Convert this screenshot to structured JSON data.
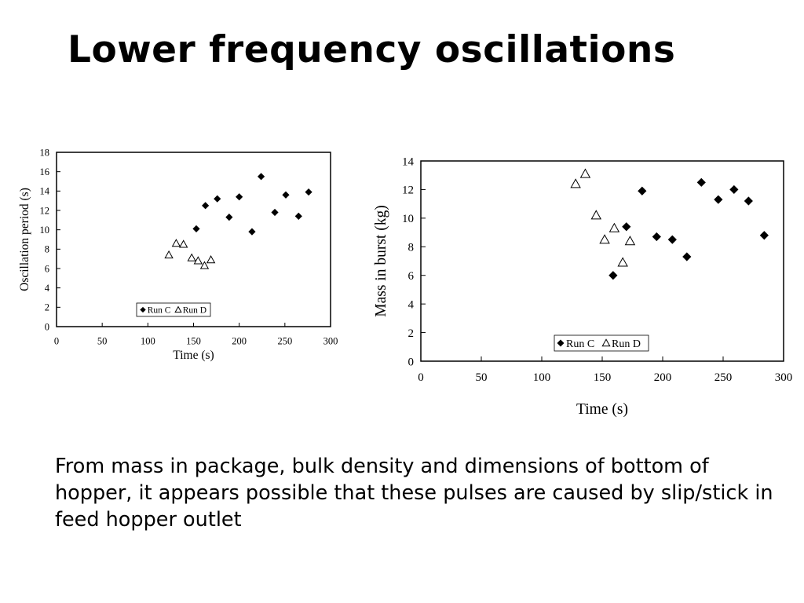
{
  "slide": {
    "title": "Lower frequency oscillations",
    "body": "From mass in package, bulk density and dimensions of bottom of hopper, it appears possible that these pulses are caused by slip/stick in feed hopper outlet"
  },
  "colors": {
    "text": "#000000",
    "marker_stroke": "#000000",
    "background": "#ffffff"
  },
  "chart_data": [
    {
      "type": "scatter",
      "title": "",
      "xlabel": "Time (s)",
      "ylabel": "Oscillation period (s)",
      "xlim": [
        0,
        300
      ],
      "ylim": [
        0,
        18
      ],
      "xticks": [
        0,
        50,
        100,
        150,
        200,
        250,
        300
      ],
      "yticks": [
        0,
        2,
        4,
        6,
        8,
        10,
        12,
        14,
        16,
        18
      ],
      "grid": false,
      "legend": "bottom-center inside plot",
      "series": [
        {
          "name": "Run C",
          "marker": "filled-diamond",
          "x": [
            153,
            163,
            176,
            189,
            200,
            214,
            224,
            239,
            251,
            265,
            276
          ],
          "y": [
            10.1,
            12.5,
            13.2,
            11.3,
            13.4,
            9.8,
            15.5,
            11.8,
            13.6,
            11.4,
            13.9
          ]
        },
        {
          "name": "Run D",
          "marker": "open-triangle",
          "x": [
            123,
            131,
            139,
            148,
            155,
            162,
            169
          ],
          "y": [
            7.4,
            8.6,
            8.5,
            7.1,
            6.8,
            6.3,
            6.9
          ]
        }
      ]
    },
    {
      "type": "scatter",
      "title": "",
      "xlabel": "Time (s)",
      "ylabel": "Mass in burst (kg)",
      "xlim": [
        0,
        300
      ],
      "ylim": [
        0,
        14
      ],
      "xticks": [
        0,
        50,
        100,
        150,
        200,
        250,
        300
      ],
      "yticks": [
        0,
        2,
        4,
        6,
        8,
        10,
        12,
        14
      ],
      "grid": false,
      "legend": "bottom-right inside plot",
      "series": [
        {
          "name": "Run C",
          "marker": "filled-diamond",
          "x": [
            159,
            170,
            183,
            195,
            208,
            220,
            232,
            246,
            259,
            271,
            284
          ],
          "y": [
            6.0,
            9.4,
            11.9,
            8.7,
            8.5,
            7.3,
            12.5,
            11.3,
            12.0,
            11.2,
            8.8
          ]
        },
        {
          "name": "Run D",
          "marker": "open-triangle",
          "x": [
            128,
            136,
            145,
            152,
            160,
            167,
            173
          ],
          "y": [
            12.4,
            13.1,
            10.2,
            8.5,
            9.3,
            6.9,
            8.4
          ]
        }
      ]
    }
  ]
}
